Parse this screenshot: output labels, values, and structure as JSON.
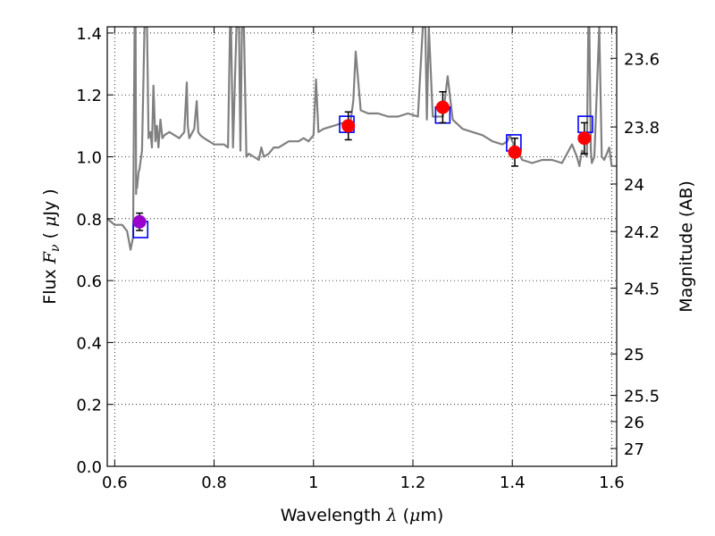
{
  "chart_data": {
    "type": "scatter",
    "title": "",
    "xlabel": "Wavelength  λ (μm)",
    "xlabel_parts": [
      "Wavelength  ",
      "λ",
      " (",
      "μ",
      "m)"
    ],
    "ylabel": "Flux  Fν ( μJy )",
    "ylabel_parts": [
      "Flux  ",
      "F",
      "ν",
      " ( ",
      "μ",
      "Jy )"
    ],
    "y2label": "Magnitude (AB)",
    "xlim": [
      0.585,
      1.61
    ],
    "ylim": [
      0.0,
      1.42
    ],
    "x_ticks": [
      0.6,
      0.8,
      1.0,
      1.2,
      1.4,
      1.6
    ],
    "x_tick_labels": [
      "0.6",
      "0.8",
      "1",
      "1.2",
      "1.4",
      "1.6"
    ],
    "y_ticks": [
      0.0,
      0.2,
      0.4,
      0.6,
      0.8,
      1.0,
      1.2,
      1.4
    ],
    "y_tick_labels": [
      "0.0",
      "0.2",
      "0.4",
      "0.6",
      "0.8",
      "1.0",
      "1.2",
      "1.4"
    ],
    "y2_ticks": [
      23.6,
      23.8,
      24,
      24.2,
      24.5,
      25,
      25.5,
      26,
      27
    ],
    "y2_tick_labels": [
      "23.6",
      "23.8",
      "24",
      "24.2",
      "24.5",
      "25",
      "25.5",
      "26",
      "27"
    ],
    "grid": true,
    "colors": {
      "model": "#808080",
      "observed": "#ff0000",
      "observed_first": "#9900cc",
      "model_box": "#0000ff",
      "errorbar": "#000000"
    },
    "model_spectrum": {
      "x": [
        0.585,
        0.6,
        0.615,
        0.625,
        0.632,
        0.637,
        0.64,
        0.642,
        0.643,
        0.644,
        0.645,
        0.648,
        0.65,
        0.655,
        0.66,
        0.663,
        0.665,
        0.668,
        0.672,
        0.675,
        0.678,
        0.682,
        0.685,
        0.688,
        0.692,
        0.696,
        0.7,
        0.71,
        0.72,
        0.73,
        0.74,
        0.745,
        0.747,
        0.75,
        0.76,
        0.765,
        0.768,
        0.772,
        0.78,
        0.8,
        0.82,
        0.828,
        0.832,
        0.834,
        0.838,
        0.845,
        0.85,
        0.853,
        0.856,
        0.86,
        0.865,
        0.87,
        0.88,
        0.89,
        0.895,
        0.9,
        0.91,
        0.92,
        0.93,
        0.95,
        0.97,
        0.98,
        0.99,
        1.0,
        1.005,
        1.01,
        1.02,
        1.04,
        1.06,
        1.07,
        1.075,
        1.08,
        1.085,
        1.095,
        1.11,
        1.13,
        1.15,
        1.17,
        1.19,
        1.21,
        1.22,
        1.225,
        1.228,
        1.232,
        1.24,
        1.26,
        1.27,
        1.28,
        1.3,
        1.32,
        1.34,
        1.36,
        1.38,
        1.39,
        1.395,
        1.4,
        1.42,
        1.44,
        1.46,
        1.48,
        1.5,
        1.52,
        1.53,
        1.535,
        1.54,
        1.545,
        1.55,
        1.553,
        1.555,
        1.558,
        1.56,
        1.565,
        1.575,
        1.58,
        1.585,
        1.595,
        1.6,
        1.61
      ],
      "y": [
        0.8,
        0.78,
        0.78,
        0.76,
        0.7,
        0.74,
        1.42,
        1.42,
        0.88,
        0.92,
        0.9,
        0.95,
        0.96,
        1.02,
        1.42,
        1.42,
        1.42,
        1.06,
        1.08,
        1.03,
        1.23,
        1.05,
        1.1,
        1.03,
        1.12,
        1.06,
        1.07,
        1.08,
        1.07,
        1.06,
        1.08,
        1.24,
        1.1,
        1.06,
        1.09,
        1.18,
        1.08,
        1.07,
        1.06,
        1.04,
        1.04,
        1.03,
        1.42,
        1.42,
        1.03,
        1.42,
        1.42,
        1.02,
        1.42,
        1.42,
        1.0,
        1.01,
        1.0,
        0.99,
        1.03,
        1.0,
        1.01,
        1.03,
        1.03,
        1.05,
        1.05,
        1.06,
        1.05,
        1.07,
        1.25,
        1.08,
        1.09,
        1.1,
        1.11,
        1.11,
        1.12,
        1.18,
        1.34,
        1.15,
        1.14,
        1.14,
        1.13,
        1.13,
        1.14,
        1.13,
        1.42,
        1.42,
        1.12,
        1.42,
        1.13,
        1.13,
        1.26,
        1.12,
        1.09,
        1.08,
        1.07,
        1.05,
        1.04,
        1.05,
        1.07,
        1.05,
        0.99,
        0.98,
        0.99,
        0.99,
        0.98,
        1.04,
        1.0,
        0.97,
        1.02,
        1.01,
        1.0,
        1.42,
        1.42,
        1.02,
        0.98,
        1.0,
        1.42,
        1.0,
        0.99,
        1.03,
        0.97,
        0.97
      ]
    },
    "observed": [
      {
        "x": 0.65,
        "y": 0.79,
        "err": 0.028
      },
      {
        "x": 1.07,
        "y": 1.1,
        "err": 0.045
      },
      {
        "x": 1.26,
        "y": 1.16,
        "err": 0.05
      },
      {
        "x": 1.405,
        "y": 1.015,
        "err": 0.045
      },
      {
        "x": 1.545,
        "y": 1.06,
        "err": 0.05
      }
    ],
    "model_photometry": [
      {
        "x": 0.652,
        "y": 0.765
      },
      {
        "x": 1.067,
        "y": 1.105
      },
      {
        "x": 1.26,
        "y": 1.135
      },
      {
        "x": 1.403,
        "y": 1.045
      },
      {
        "x": 1.547,
        "y": 1.105
      }
    ]
  }
}
